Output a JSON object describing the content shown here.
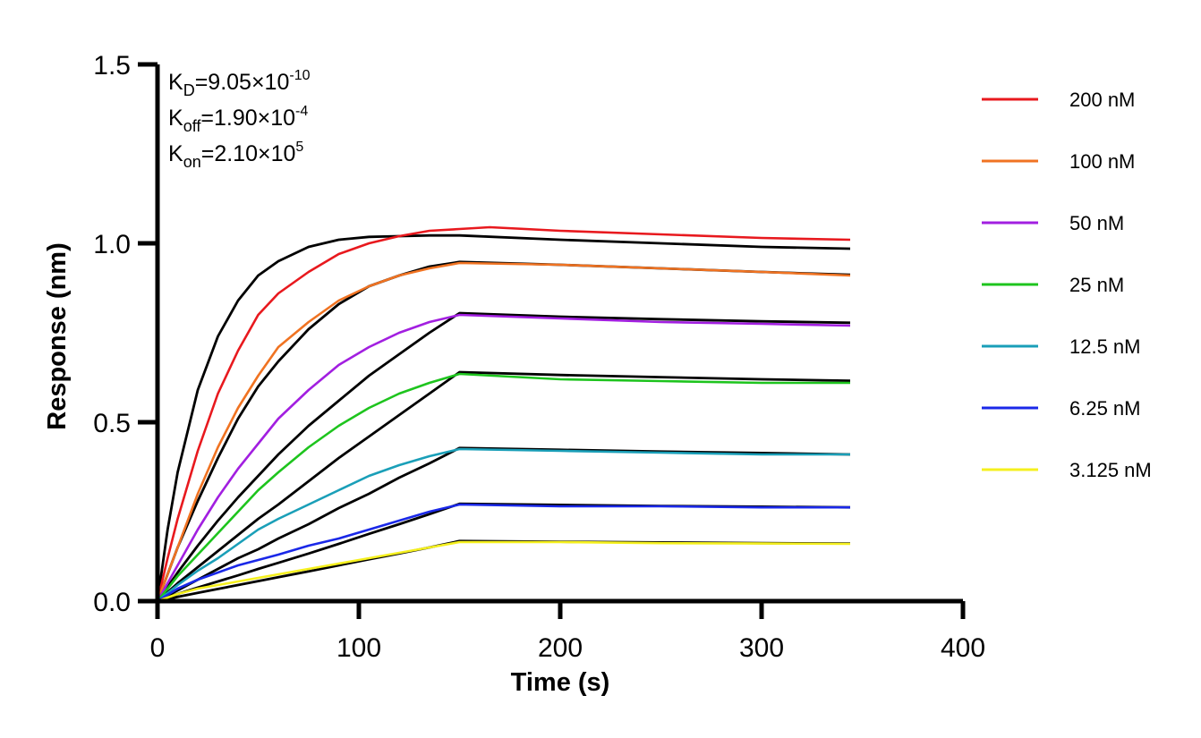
{
  "chart_data": {
    "type": "line",
    "title": "",
    "xlabel": "Time (s)",
    "ylabel": "Response (nm)",
    "xlim": [
      0,
      400
    ],
    "ylim": [
      0,
      1.5
    ],
    "x_ticks": [
      0,
      100,
      200,
      300,
      400
    ],
    "x_tick_labels": [
      "0",
      "100",
      "200",
      "300",
      "400"
    ],
    "y_ticks": [
      0,
      0.5,
      1.0,
      1.5
    ],
    "y_tick_labels": [
      "0.0",
      "0.5",
      "1.0",
      "1.5"
    ],
    "grid": false,
    "legend_position": "right",
    "association_end_s": 150,
    "end_s": 344,
    "annotations": [
      {
        "base": "K",
        "sub": "D",
        "value": "=9.05×10",
        "exp": "-10"
      },
      {
        "base": "K",
        "sub": "off",
        "value": "=1.90×10",
        "exp": "-4"
      },
      {
        "base": "K",
        "sub": "on",
        "value": "=2.10×10",
        "exp": "5"
      }
    ],
    "series": [
      {
        "name": "200 nM",
        "color": "#e8191e",
        "x": [
          0,
          5,
          10,
          20,
          30,
          40,
          50,
          60,
          75,
          90,
          105,
          120,
          135,
          150,
          165,
          200,
          250,
          300,
          344
        ],
        "y": [
          0,
          0.12,
          0.23,
          0.42,
          0.58,
          0.7,
          0.8,
          0.86,
          0.92,
          0.97,
          1.0,
          1.02,
          1.035,
          1.04,
          1.045,
          1.035,
          1.025,
          1.015,
          1.01
        ]
      },
      {
        "name": "100 nM",
        "color": "#f07322",
        "x": [
          0,
          10,
          20,
          30,
          40,
          50,
          60,
          75,
          90,
          105,
          120,
          135,
          150,
          200,
          250,
          300,
          344
        ],
        "y": [
          0,
          0.15,
          0.3,
          0.43,
          0.54,
          0.63,
          0.71,
          0.78,
          0.84,
          0.88,
          0.91,
          0.93,
          0.945,
          0.94,
          0.93,
          0.92,
          0.91
        ]
      },
      {
        "name": "50 nM",
        "color": "#a21fe0",
        "x": [
          0,
          10,
          20,
          30,
          40,
          50,
          60,
          75,
          90,
          105,
          120,
          135,
          150,
          200,
          250,
          300,
          344
        ],
        "y": [
          0,
          0.1,
          0.2,
          0.29,
          0.37,
          0.44,
          0.51,
          0.59,
          0.66,
          0.71,
          0.75,
          0.78,
          0.8,
          0.79,
          0.78,
          0.775,
          0.77
        ]
      },
      {
        "name": "25 nM",
        "color": "#1ec41e",
        "x": [
          0,
          10,
          20,
          30,
          40,
          50,
          60,
          75,
          90,
          105,
          120,
          135,
          150,
          200,
          250,
          300,
          344
        ],
        "y": [
          0,
          0.07,
          0.13,
          0.19,
          0.25,
          0.31,
          0.36,
          0.43,
          0.49,
          0.54,
          0.58,
          0.61,
          0.635,
          0.62,
          0.615,
          0.61,
          0.61
        ]
      },
      {
        "name": "12.5 nM",
        "color": "#1a9fb8",
        "x": [
          0,
          10,
          20,
          30,
          40,
          50,
          60,
          75,
          90,
          105,
          120,
          135,
          150,
          200,
          250,
          300,
          344
        ],
        "y": [
          0,
          0.045,
          0.085,
          0.12,
          0.16,
          0.2,
          0.23,
          0.27,
          0.31,
          0.35,
          0.38,
          0.405,
          0.425,
          0.42,
          0.415,
          0.41,
          0.41
        ]
      },
      {
        "name": "6.25 nM",
        "color": "#1a28e8",
        "x": [
          0,
          10,
          20,
          30,
          40,
          50,
          60,
          75,
          90,
          105,
          120,
          135,
          150,
          200,
          250,
          300,
          344
        ],
        "y": [
          0,
          0.035,
          0.06,
          0.08,
          0.1,
          0.115,
          0.13,
          0.155,
          0.175,
          0.2,
          0.225,
          0.25,
          0.27,
          0.265,
          0.265,
          0.262,
          0.262
        ]
      },
      {
        "name": "3.125 nM",
        "color": "#f5f01e",
        "x": [
          0,
          10,
          20,
          30,
          40,
          50,
          60,
          75,
          90,
          105,
          120,
          135,
          150,
          200,
          250,
          300,
          344
        ],
        "y": [
          0,
          0.02,
          0.035,
          0.045,
          0.055,
          0.065,
          0.075,
          0.09,
          0.105,
          0.12,
          0.135,
          0.15,
          0.165,
          0.165,
          0.162,
          0.161,
          0.16
        ]
      }
    ],
    "fit_curves": [
      {
        "color": "#000000",
        "x": [
          0,
          5,
          10,
          20,
          30,
          40,
          50,
          60,
          75,
          90,
          105,
          120,
          135,
          150,
          200,
          250,
          300,
          344
        ],
        "y": [
          0,
          0.2,
          0.36,
          0.59,
          0.74,
          0.84,
          0.91,
          0.95,
          0.99,
          1.01,
          1.018,
          1.02,
          1.022,
          1.022,
          1.01,
          1.0,
          0.99,
          0.985
        ]
      },
      {
        "color": "#000000",
        "x": [
          0,
          10,
          20,
          30,
          40,
          50,
          60,
          75,
          90,
          105,
          120,
          135,
          150,
          200,
          250,
          300,
          344
        ],
        "y": [
          0,
          0.15,
          0.28,
          0.4,
          0.51,
          0.6,
          0.67,
          0.76,
          0.83,
          0.88,
          0.91,
          0.935,
          0.948,
          0.94,
          0.93,
          0.92,
          0.912
        ]
      },
      {
        "color": "#000000",
        "x": [
          0,
          10,
          20,
          30,
          40,
          50,
          60,
          75,
          90,
          105,
          120,
          135,
          150,
          200,
          250,
          300,
          344
        ],
        "y": [
          0,
          0.08,
          0.155,
          0.225,
          0.29,
          0.35,
          0.41,
          0.49,
          0.56,
          0.63,
          0.69,
          0.75,
          0.805,
          0.795,
          0.788,
          0.782,
          0.778
        ]
      },
      {
        "color": "#000000",
        "x": [
          0,
          10,
          20,
          30,
          40,
          50,
          60,
          75,
          90,
          105,
          120,
          135,
          150,
          200,
          250,
          300,
          344
        ],
        "y": [
          0,
          0.05,
          0.095,
          0.14,
          0.185,
          0.23,
          0.27,
          0.335,
          0.4,
          0.46,
          0.52,
          0.58,
          0.64,
          0.632,
          0.626,
          0.62,
          0.616
        ]
      },
      {
        "color": "#000000",
        "x": [
          0,
          10,
          20,
          30,
          40,
          50,
          60,
          75,
          90,
          105,
          120,
          135,
          150,
          200,
          250,
          300,
          344
        ],
        "y": [
          0,
          0.03,
          0.06,
          0.09,
          0.12,
          0.145,
          0.175,
          0.215,
          0.26,
          0.3,
          0.345,
          0.385,
          0.428,
          0.423,
          0.418,
          0.414,
          0.41
        ]
      },
      {
        "color": "#000000",
        "x": [
          0,
          10,
          20,
          30,
          40,
          50,
          60,
          75,
          90,
          105,
          120,
          135,
          150,
          200,
          250,
          300,
          344
        ],
        "y": [
          0,
          0.02,
          0.038,
          0.055,
          0.072,
          0.09,
          0.107,
          0.133,
          0.16,
          0.188,
          0.215,
          0.243,
          0.272,
          0.269,
          0.266,
          0.264,
          0.262
        ]
      },
      {
        "color": "#000000",
        "x": [
          0,
          10,
          20,
          30,
          40,
          50,
          60,
          75,
          90,
          105,
          120,
          135,
          150,
          200,
          250,
          300,
          344
        ],
        "y": [
          0,
          0.012,
          0.023,
          0.034,
          0.045,
          0.056,
          0.067,
          0.083,
          0.1,
          0.117,
          0.133,
          0.15,
          0.168,
          0.166,
          0.164,
          0.162,
          0.161
        ]
      }
    ]
  }
}
